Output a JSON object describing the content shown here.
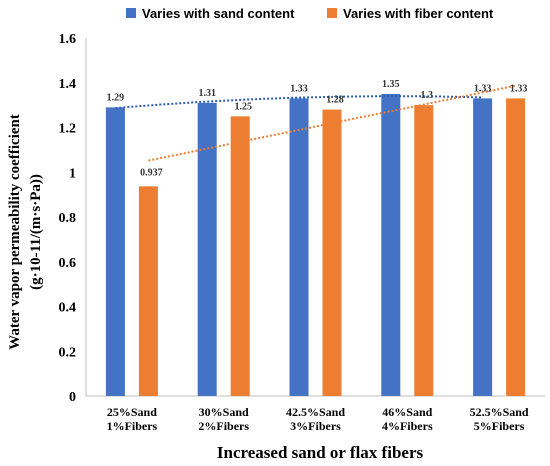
{
  "chart_data": {
    "type": "bar",
    "categories": [
      [
        "25%Sand",
        "1%Fibers"
      ],
      [
        "30%Sand",
        "2%Fibers"
      ],
      [
        "42.5%Sand",
        "3%Fibers"
      ],
      [
        "46%Sand",
        "4%Fibers"
      ],
      [
        "52.5%Sand",
        "5%Fibers"
      ]
    ],
    "series": [
      {
        "name": "Varies with sand content",
        "values": [
          1.29,
          1.31,
          1.33,
          1.35,
          1.33
        ],
        "labels": [
          "1.29",
          "1.31",
          "1.33",
          "1.35",
          "1.33"
        ],
        "color": "#4472C4"
      },
      {
        "name": "Varies with fiber content",
        "values": [
          0.937,
          1.25,
          1.28,
          1.3,
          1.33
        ],
        "labels": [
          "0.937",
          "1.25",
          "1.28",
          "1.3",
          "1.33"
        ],
        "color": "#ED7D31"
      }
    ],
    "trendlines": [
      "dotted",
      "dotted"
    ],
    "xlabel": "Increased sand or flax fibers",
    "ylabel": [
      "Water vapor permeability coefficient",
      "(g·10-11/(m·s·Pa))"
    ],
    "ylim": [
      0,
      1.6
    ],
    "yticks": [
      "0",
      "0.2",
      "0.4",
      "0.6",
      "0.8",
      "1",
      "1.2",
      "1.4",
      "1.6"
    ],
    "grid": false,
    "legend": "top"
  }
}
